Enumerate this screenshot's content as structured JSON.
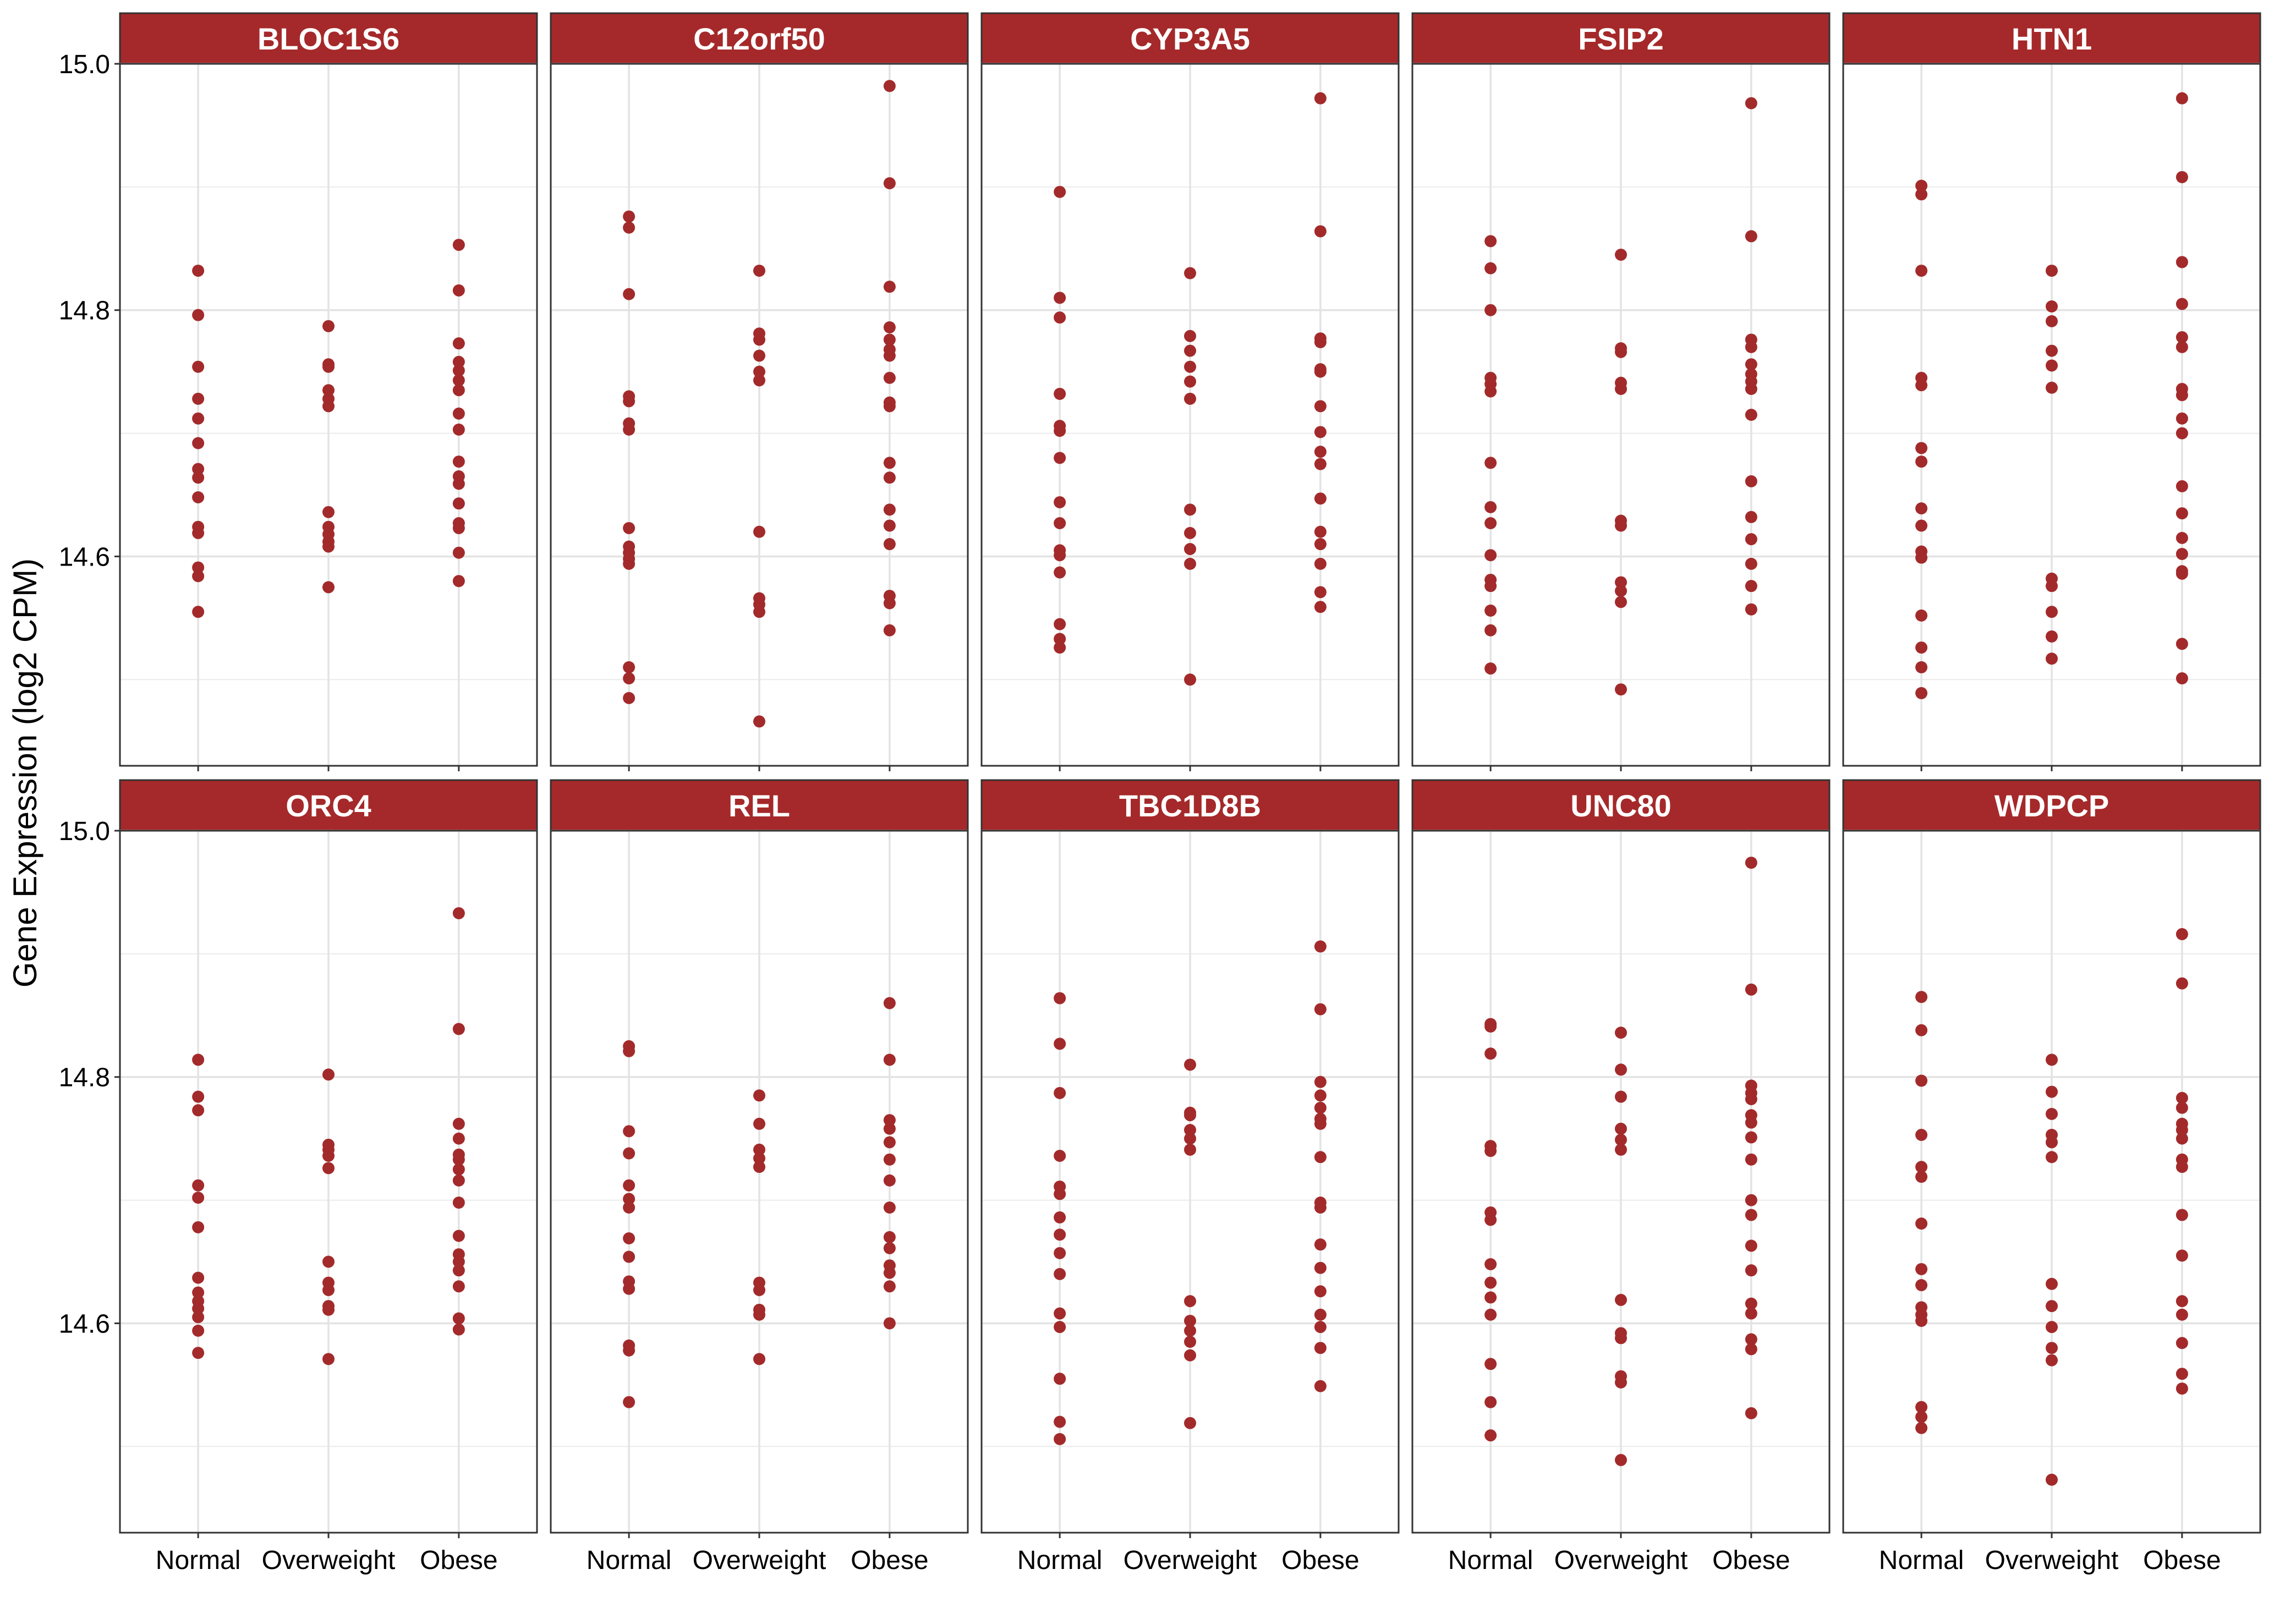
{
  "chart_data": {
    "type": "scatter",
    "ylabel": "Gene Expression (log2 CPM)",
    "xlabel": "",
    "categories": [
      "Normal",
      "Overweight",
      "Obese"
    ],
    "ylim": [
      14.43,
      15.0
    ],
    "y_ticks": [
      14.6,
      14.8,
      15.0
    ],
    "y_tick_labels": [
      "14.6",
      "14.8",
      "15.0"
    ],
    "grid": true,
    "point_color": "#A32A2B",
    "strip_color": "#A5292A",
    "panels": [
      {
        "gene": "BLOC1S6",
        "groups": [
          [
            14.832,
            14.796,
            14.754,
            14.728,
            14.712,
            14.692,
            14.671,
            14.664,
            14.648,
            14.624,
            14.619,
            14.591,
            14.584,
            14.555
          ],
          [
            14.787,
            14.756,
            14.754,
            14.735,
            14.728,
            14.722,
            14.636,
            14.624,
            14.618,
            14.612,
            14.608,
            14.575
          ],
          [
            14.853,
            14.816,
            14.773,
            14.758,
            14.751,
            14.743,
            14.735,
            14.716,
            14.703,
            14.677,
            14.665,
            14.659,
            14.643,
            14.627,
            14.623,
            14.603,
            14.58
          ]
        ]
      },
      {
        "gene": "C12orf50",
        "groups": [
          [
            14.876,
            14.867,
            14.813,
            14.73,
            14.726,
            14.708,
            14.703,
            14.623,
            14.608,
            14.603,
            14.598,
            14.594,
            14.51,
            14.501,
            14.485
          ],
          [
            14.832,
            14.781,
            14.776,
            14.763,
            14.75,
            14.743,
            14.62,
            14.566,
            14.561,
            14.555,
            14.466
          ],
          [
            14.982,
            14.903,
            14.819,
            14.786,
            14.776,
            14.768,
            14.763,
            14.745,
            14.725,
            14.722,
            14.676,
            14.664,
            14.638,
            14.625,
            14.61,
            14.568,
            14.562,
            14.54
          ]
        ]
      },
      {
        "gene": "CYP3A5",
        "groups": [
          [
            14.896,
            14.81,
            14.794,
            14.732,
            14.706,
            14.702,
            14.68,
            14.644,
            14.627,
            14.605,
            14.601,
            14.587,
            14.545,
            14.533,
            14.526
          ],
          [
            14.83,
            14.779,
            14.767,
            14.754,
            14.742,
            14.728,
            14.638,
            14.619,
            14.606,
            14.594,
            14.5
          ],
          [
            14.972,
            14.864,
            14.777,
            14.774,
            14.752,
            14.75,
            14.722,
            14.701,
            14.685,
            14.675,
            14.647,
            14.62,
            14.61,
            14.594,
            14.571,
            14.559
          ]
        ]
      },
      {
        "gene": "FSIP2",
        "groups": [
          [
            14.856,
            14.834,
            14.8,
            14.745,
            14.74,
            14.734,
            14.676,
            14.64,
            14.627,
            14.601,
            14.581,
            14.576,
            14.556,
            14.54,
            14.509
          ],
          [
            14.845,
            14.769,
            14.766,
            14.741,
            14.736,
            14.629,
            14.625,
            14.579,
            14.572,
            14.563,
            14.492
          ],
          [
            14.968,
            14.86,
            14.776,
            14.77,
            14.756,
            14.748,
            14.742,
            14.736,
            14.715,
            14.661,
            14.632,
            14.614,
            14.594,
            14.576,
            14.557
          ]
        ]
      },
      {
        "gene": "HTN1",
        "groups": [
          [
            14.901,
            14.894,
            14.832,
            14.745,
            14.739,
            14.688,
            14.677,
            14.639,
            14.625,
            14.604,
            14.599,
            14.552,
            14.526,
            14.51,
            14.489
          ],
          [
            14.832,
            14.803,
            14.791,
            14.767,
            14.755,
            14.737,
            14.582,
            14.576,
            14.555,
            14.535,
            14.517
          ],
          [
            14.972,
            14.908,
            14.839,
            14.805,
            14.778,
            14.77,
            14.736,
            14.731,
            14.712,
            14.7,
            14.657,
            14.635,
            14.615,
            14.602,
            14.588,
            14.586,
            14.529,
            14.501
          ]
        ]
      },
      {
        "gene": "ORC4",
        "groups": [
          [
            14.814,
            14.784,
            14.773,
            14.712,
            14.702,
            14.678,
            14.637,
            14.625,
            14.618,
            14.612,
            14.605,
            14.594,
            14.576
          ],
          [
            14.802,
            14.745,
            14.741,
            14.736,
            14.726,
            14.65,
            14.633,
            14.627,
            14.614,
            14.611,
            14.571
          ],
          [
            14.933,
            14.839,
            14.762,
            14.75,
            14.737,
            14.733,
            14.725,
            14.716,
            14.698,
            14.671,
            14.656,
            14.65,
            14.643,
            14.63,
            14.604,
            14.595
          ]
        ]
      },
      {
        "gene": "REL",
        "groups": [
          [
            14.825,
            14.821,
            14.756,
            14.738,
            14.712,
            14.701,
            14.694,
            14.669,
            14.654,
            14.634,
            14.628,
            14.582,
            14.578,
            14.536
          ],
          [
            14.785,
            14.762,
            14.741,
            14.734,
            14.727,
            14.633,
            14.627,
            14.611,
            14.607,
            14.571
          ],
          [
            14.86,
            14.814,
            14.765,
            14.758,
            14.747,
            14.733,
            14.716,
            14.694,
            14.67,
            14.661,
            14.647,
            14.641,
            14.63,
            14.6
          ]
        ]
      },
      {
        "gene": "TBC1D8B",
        "groups": [
          [
            14.864,
            14.827,
            14.787,
            14.736,
            14.711,
            14.705,
            14.686,
            14.672,
            14.657,
            14.64,
            14.608,
            14.597,
            14.555,
            14.52,
            14.506
          ],
          [
            14.81,
            14.771,
            14.769,
            14.757,
            14.75,
            14.741,
            14.618,
            14.602,
            14.594,
            14.585,
            14.574,
            14.519
          ],
          [
            14.906,
            14.855,
            14.796,
            14.785,
            14.775,
            14.766,
            14.762,
            14.735,
            14.698,
            14.694,
            14.664,
            14.645,
            14.626,
            14.607,
            14.597,
            14.58,
            14.549
          ]
        ]
      },
      {
        "gene": "UNC80",
        "groups": [
          [
            14.843,
            14.841,
            14.819,
            14.744,
            14.74,
            14.69,
            14.684,
            14.648,
            14.633,
            14.621,
            14.607,
            14.567,
            14.536,
            14.509
          ],
          [
            14.836,
            14.806,
            14.784,
            14.758,
            14.749,
            14.741,
            14.619,
            14.592,
            14.588,
            14.557,
            14.552,
            14.489
          ],
          [
            14.974,
            14.871,
            14.793,
            14.787,
            14.782,
            14.769,
            14.763,
            14.751,
            14.733,
            14.7,
            14.688,
            14.663,
            14.643,
            14.616,
            14.608,
            14.587,
            14.579,
            14.527
          ]
        ]
      },
      {
        "gene": "WDPCP",
        "groups": [
          [
            14.865,
            14.838,
            14.797,
            14.753,
            14.727,
            14.719,
            14.681,
            14.644,
            14.631,
            14.613,
            14.607,
            14.602,
            14.532,
            14.524,
            14.515
          ],
          [
            14.814,
            14.788,
            14.77,
            14.753,
            14.747,
            14.735,
            14.632,
            14.614,
            14.597,
            14.58,
            14.57,
            14.473
          ],
          [
            14.916,
            14.876,
            14.783,
            14.775,
            14.762,
            14.757,
            14.75,
            14.733,
            14.727,
            14.688,
            14.655,
            14.618,
            14.607,
            14.584,
            14.559,
            14.547
          ]
        ]
      }
    ]
  }
}
